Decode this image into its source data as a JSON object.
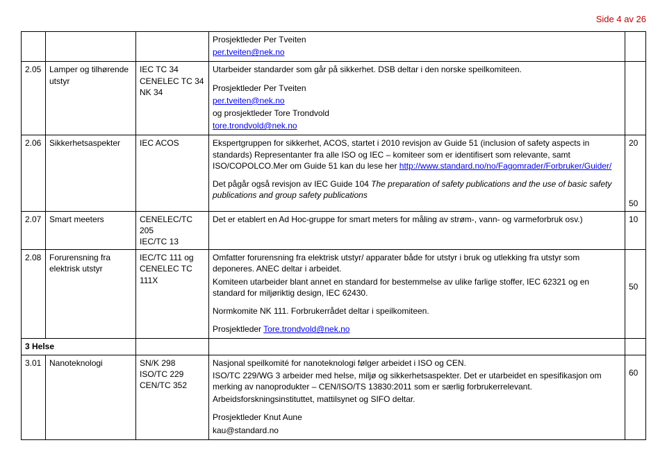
{
  "header": {
    "page_indicator": "Side 4 av 26"
  },
  "rows": [
    {
      "blank_top": true,
      "num": "",
      "topic": "",
      "comm": "",
      "desc_parts": [
        {
          "text": "Prosjektleder Per Tveiten"
        },
        {
          "link": "per.tveiten@nek.no"
        }
      ],
      "score": ""
    },
    {
      "num": "2.05",
      "topic": "Lamper og tilhørende utstyr",
      "comm": "IEC TC 34\nCENELEC TC 34\nNK 34",
      "desc_parts": [
        {
          "text": "Utarbeider standarder som går på sikkerhet. DSB deltar i den norske speilkomiteen."
        },
        {
          "gap": true,
          "text": "Prosjektleder Per Tveiten"
        },
        {
          "link": "per.tveiten@nek.no"
        },
        {
          "text": "og prosjektleder Tore Trondvold"
        },
        {
          "link": "tore.trondvold@nek.no"
        }
      ],
      "score": ""
    },
    {
      "num": "2.06",
      "topic": "Sikkerhetsaspekter",
      "comm": "IEC ACOS",
      "desc_parts": [
        {
          "text": "Ekspertgruppen for sikkerhet, ACOS, startet i 2010 revisjon av Guide 51 (inclusion of safety aspects in standards) Representanter fra alle ISO og IEC – komiteer som er identifisert som relevante, samt ISO/COPOLCO.Mer om Guide 51 kan du lese her ",
          "inline_link": "http://www.standard.no/no/Fagomrader/Forbruker/Guider/"
        },
        {
          "gap": true,
          "mixed": [
            {
              "t": "Det pågår også revisjon av IEC Guide 104 "
            },
            {
              "i": "The preparation of safety publications and the use of basic safety publications and group safety publications"
            }
          ]
        }
      ],
      "score_multi": [
        "20",
        "",
        "",
        "",
        "",
        "",
        "50"
      ]
    },
    {
      "num": "2.07",
      "topic": "Smart meeters",
      "comm": "CENELEC/TC 205\nIEC/TC 13",
      "desc_parts": [
        {
          "text": "Det er etablert en Ad Hoc-gruppe for smart meters for måling av strøm-, vann- og varmeforbruk osv.)"
        }
      ],
      "score": "10"
    },
    {
      "num": "2.08",
      "topic": "Forurensning fra elektrisk utstyr",
      "comm": "IEC/TC 111 og CENELEC TC 111X",
      "desc_parts": [
        {
          "text": "Omfatter forurensning fra elektrisk utstyr/ apparater både for utstyr i bruk og utlekking fra utstyr som deponeres. ANEC deltar i arbeidet."
        },
        {
          "text": "Komiteen utarbeider blant annet en standard for bestemmelse av ulike farlige stoffer, IEC 62321 og en standard for miljøriktig design, IEC 62430."
        },
        {
          "gap": true,
          "text": "Normkomite NK 111. Forbrukerrådet deltar i speilkomiteen."
        },
        {
          "gap": true,
          "mixed": [
            {
              "t": "Prosjektleder "
            },
            {
              "l": "Tore.trondvold@nek.no"
            }
          ]
        }
      ],
      "score_multi": [
        "",
        "",
        "",
        "50"
      ]
    },
    {
      "num": "",
      "topic_bold": "3 Helse",
      "colspan_left": true,
      "comm": "",
      "desc_parts": [],
      "score": ""
    },
    {
      "num": "3.01",
      "topic": "Nanoteknologi",
      "comm": "SN/K 298\nISO/TC 229\nCEN/TC 352",
      "desc_parts": [
        {
          "text": "Nasjonal speilkomité for nanoteknologi følger arbeidet i ISO og CEN."
        },
        {
          "text": "ISO/TC 229/WG 3 arbeider med helse, miljø og sikkerhetsaspekter. Det er utarbeidet en spesifikasjon om merking av nanoprodukter – CEN/ISO/TS 13830:2011 som er særlig forbrukerrelevant."
        },
        {
          "text": "Arbeidsforskningsinstituttet, mattilsynet og SIFO deltar."
        },
        {
          "gap": true,
          "text": "Prosjektleder Knut Aune"
        },
        {
          "text": "kau@standard.no"
        }
      ],
      "score_multi": [
        "",
        "60"
      ]
    }
  ]
}
